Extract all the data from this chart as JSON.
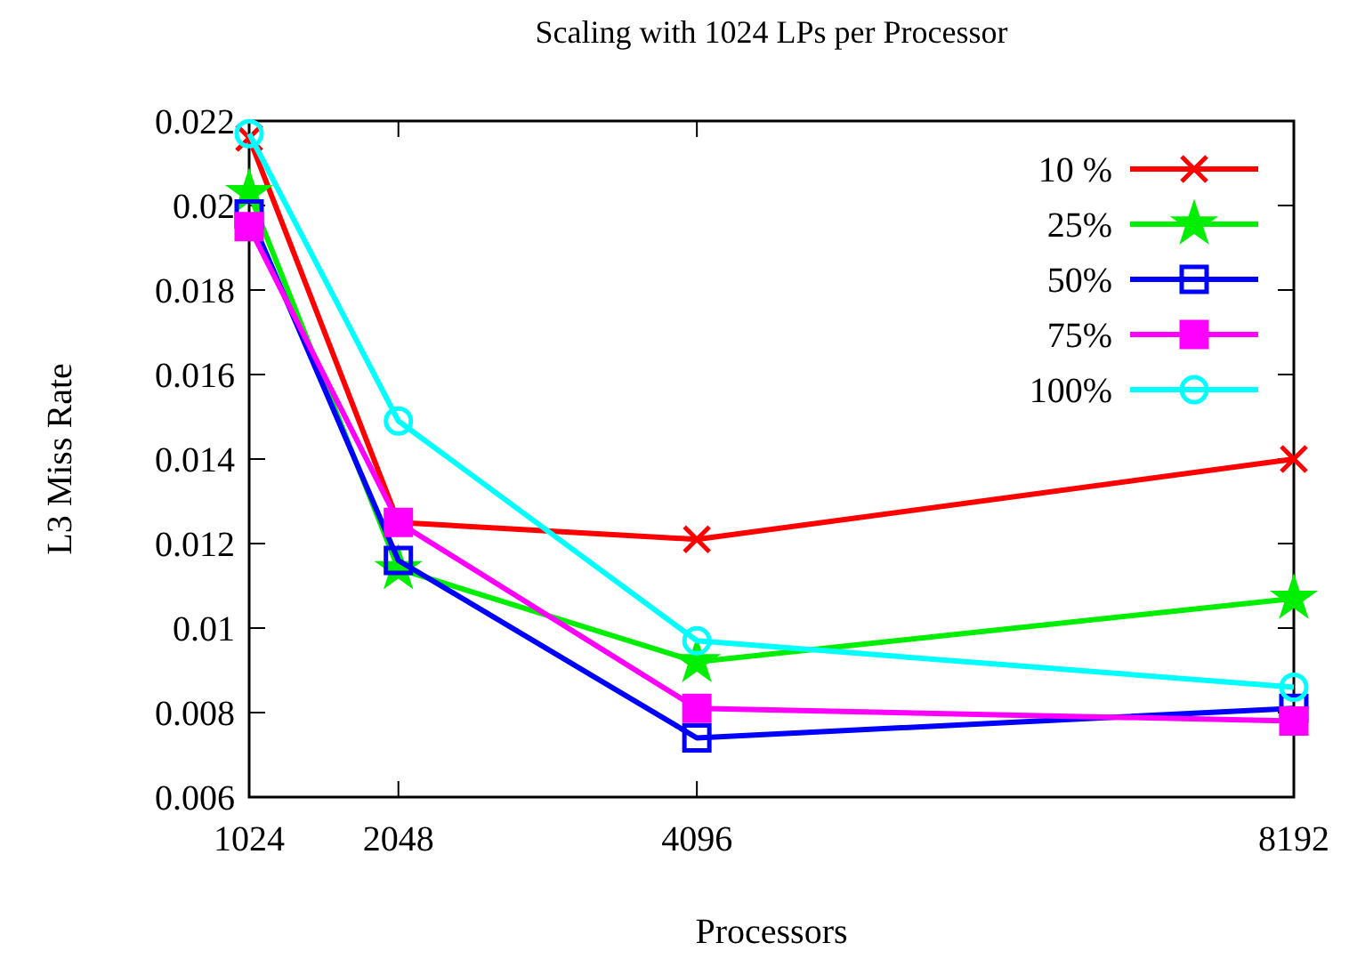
{
  "chart_data": {
    "type": "line",
    "title": "Scaling with 1024 LPs per Processor",
    "xlabel": "Processors",
    "ylabel": "L3 Miss Rate",
    "x": [
      1024,
      2048,
      4096,
      8192
    ],
    "xlim": [
      1024,
      8192
    ],
    "xticks": [
      1024,
      2048,
      4096,
      8192
    ],
    "ylim": [
      0.006,
      0.022
    ],
    "yticks": [
      0.006,
      0.008,
      0.01,
      0.012,
      0.014,
      0.016,
      0.018,
      0.02,
      0.022
    ],
    "grid": false,
    "legend": "top right",
    "line_style": "solid",
    "series": [
      {
        "name": "10 %",
        "color": "#ff0000",
        "marker": "cross",
        "values": [
          0.0216,
          0.0125,
          0.0121,
          0.014
        ]
      },
      {
        "name": "25%",
        "color": "#00ee00",
        "marker": "star",
        "values": [
          0.0203,
          0.0114,
          0.0092,
          0.0107
        ]
      },
      {
        "name": "50%",
        "color": "#0000ff",
        "marker": "square",
        "values": [
          0.0198,
          0.0116,
          0.0074,
          0.0081
        ]
      },
      {
        "name": "75%",
        "color": "#ff00ff",
        "marker": "square",
        "values": [
          0.0195,
          0.0125,
          0.0081,
          0.0078
        ]
      },
      {
        "name": "100%",
        "color": "#00ffff",
        "marker": "circle",
        "values": [
          0.0217,
          0.0149,
          0.0097,
          0.0086
        ]
      }
    ]
  }
}
